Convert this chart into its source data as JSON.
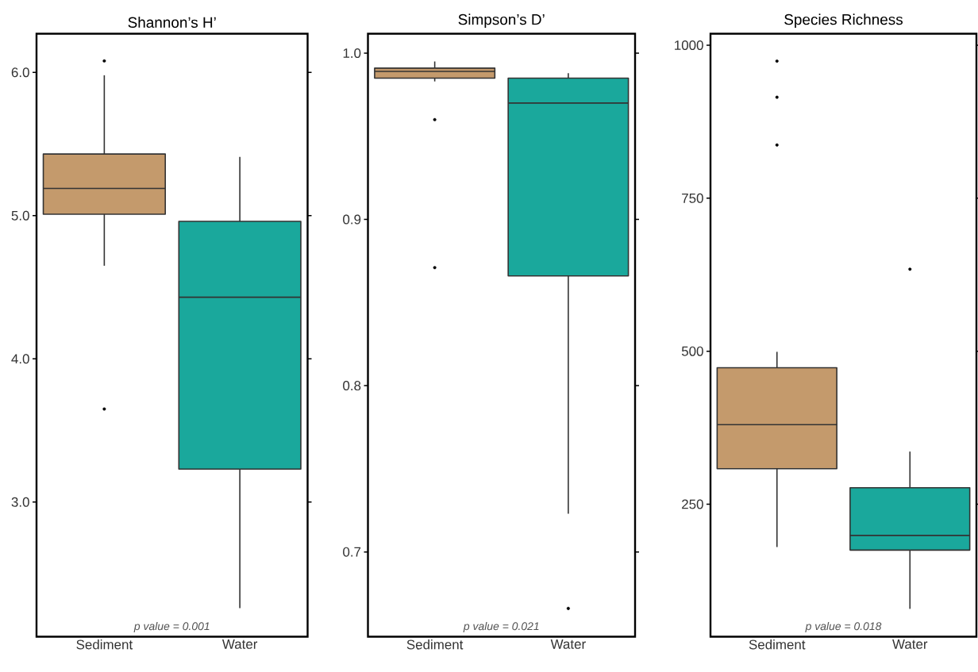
{
  "chart_data": [
    {
      "type": "box",
      "title": "Shannon’s H’",
      "categories": [
        "Sediment",
        "Water"
      ],
      "colors": [
        "#c49a6c",
        "#1aa89c"
      ],
      "boxes": [
        {
          "low": 4.65,
          "q1": 5.01,
          "median": 5.19,
          "q3": 5.43,
          "high": 5.98,
          "outliers": [
            6.08,
            3.65
          ]
        },
        {
          "low": 2.26,
          "q1": 3.23,
          "median": 4.43,
          "q3": 4.96,
          "high": 5.41
        }
      ],
      "ylim": [
        2.06,
        6.27
      ],
      "yticks": [
        {
          "value": 3,
          "label": "3.0"
        },
        {
          "value": 4,
          "label": "4.0"
        },
        {
          "value": 5,
          "label": "5.0"
        },
        {
          "value": 6,
          "label": "6.0"
        }
      ],
      "annotations": [
        "p value = 0.001"
      ]
    },
    {
      "type": "box",
      "title": "Simpson’s D’",
      "categories": [
        "Sediment",
        "Water"
      ],
      "colors": [
        "#c49a6c",
        "#1aa89c"
      ],
      "boxes": [
        {
          "low": 0.983,
          "q1": 0.985,
          "median": 0.989,
          "q3": 0.991,
          "high": 0.995,
          "outliers": [
            0.96,
            0.871
          ]
        },
        {
          "low": 0.723,
          "q1": 0.866,
          "median": 0.97,
          "q3": 0.985,
          "high": 0.988,
          "outliers": [
            0.666
          ]
        }
      ],
      "ylim": [
        0.649,
        1.0117
      ],
      "yticks": [
        {
          "value": 0.7,
          "label": "0.7"
        },
        {
          "value": 0.8,
          "label": "0.8"
        },
        {
          "value": 0.9,
          "label": "0.9"
        },
        {
          "value": 1.0,
          "label": "1.0"
        }
      ],
      "annotations": [
        "p value = 0.021"
      ]
    },
    {
      "type": "box",
      "title": "Species Richness",
      "categories": [
        "Sediment",
        "Water"
      ],
      "colors": [
        "#c49a6c",
        "#1aa89c"
      ],
      "boxes": [
        {
          "low": 180,
          "q1": 308,
          "median": 380,
          "q3": 473,
          "high": 499,
          "outliers": [
            974,
            915,
            837
          ]
        },
        {
          "low": 79,
          "q1": 175,
          "median": 199,
          "q3": 277,
          "high": 336,
          "outliers": [
            634
          ]
        }
      ],
      "ylim": [
        33.5,
        1018.8
      ],
      "yticks": [
        250,
        500,
        750,
        1000
      ],
      "annotations": [
        "p value = 0.018"
      ]
    }
  ]
}
